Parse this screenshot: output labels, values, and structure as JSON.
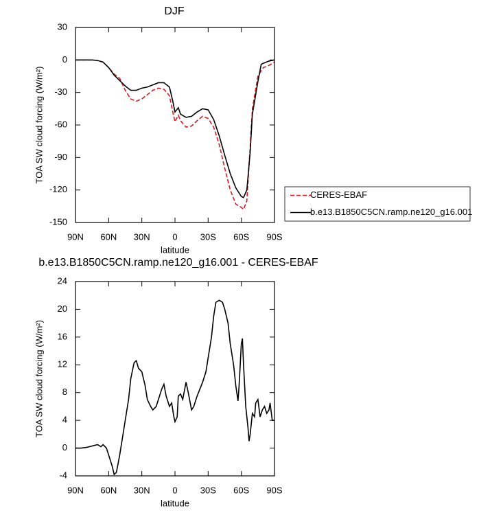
{
  "chart_data": [
    {
      "type": "line",
      "title": "DJF",
      "xlabel": "latitude",
      "ylabel": "TOA SW cloud forcing (W/m²)",
      "x": [
        90,
        85,
        80,
        75,
        70,
        65,
        60,
        55,
        50,
        45,
        40,
        35,
        30,
        25,
        20,
        15,
        10,
        5,
        2,
        0,
        -3,
        -5,
        -10,
        -15,
        -20,
        -25,
        -30,
        -35,
        -40,
        -45,
        -50,
        -55,
        -60,
        -62,
        -65,
        -68,
        -70,
        -75,
        -78,
        -80,
        -85,
        -90
      ],
      "series": [
        {
          "name": "CERES-EBAF",
          "color": "#e8141e",
          "dash": true,
          "values": [
            0,
            0,
            0,
            0,
            -0.5,
            -2,
            -7,
            -13,
            -17,
            -28,
            -36,
            -38,
            -36,
            -32,
            -28,
            -26,
            -27,
            -33,
            -48,
            -57,
            -51,
            -56,
            -62,
            -61,
            -56,
            -52,
            -54,
            -62,
            -78,
            -100,
            -120,
            -133,
            -136,
            -138,
            -130,
            -80,
            -45,
            -15,
            -10,
            -7,
            -5,
            -2
          ]
        },
        {
          "name": "b.e13.B1850C5CN.ramp.ne120_g16.001",
          "color": "#000000",
          "dash": false,
          "values": [
            0,
            0,
            0,
            0,
            -0.5,
            -2,
            -7,
            -14,
            -19,
            -24,
            -28,
            -28,
            -26,
            -25,
            -23,
            -21,
            -21,
            -25,
            -38,
            -48,
            -44,
            -50,
            -53,
            -52,
            -48,
            -45,
            -46,
            -55,
            -70,
            -88,
            -105,
            -118,
            -126,
            -127,
            -120,
            -85,
            -50,
            -20,
            -4,
            -3,
            -1,
            0
          ]
        }
      ],
      "xlim": [
        90,
        -90
      ],
      "ylim": [
        -150,
        30
      ],
      "xticks": [
        {
          "value": 90,
          "label": "90N"
        },
        {
          "value": 60,
          "label": "60N"
        },
        {
          "value": 30,
          "label": "30N"
        },
        0,
        {
          "value": -30,
          "label": "30S"
        },
        {
          "value": -60,
          "label": "60S"
        },
        {
          "value": -90,
          "label": "90S"
        }
      ],
      "yticks": [
        -150,
        -120,
        -90,
        -60,
        -30,
        0,
        30
      ],
      "legend": "outside-right"
    },
    {
      "type": "line",
      "title": "b.e13.B1850C5CN.ramp.ne120_g16.001 - CERES-EBAF",
      "xlabel": "latitude",
      "ylabel": "TOA SW cloud forcing (W/m²)",
      "x": [
        90,
        85,
        80,
        75,
        70,
        67,
        65,
        62,
        60,
        57,
        55,
        53,
        50,
        47,
        45,
        42,
        40,
        37,
        35,
        33,
        30,
        27,
        25,
        22,
        20,
        17,
        15,
        12,
        10,
        8,
        5,
        3,
        1,
        0,
        -2,
        -3,
        -5,
        -7,
        -10,
        -12,
        -15,
        -17,
        -20,
        -25,
        -28,
        -30,
        -33,
        -35,
        -37,
        -40,
        -43,
        -45,
        -48,
        -50,
        -53,
        -55,
        -57,
        -58,
        -60,
        -61,
        -62,
        -64,
        -66,
        -67,
        -68,
        -70,
        -72,
        -73,
        -75,
        -77,
        -79,
        -81,
        -83,
        -85,
        -86,
        -88,
        -90
      ],
      "values": [
        0,
        0,
        0.1,
        0.3,
        0.5,
        0.2,
        0.5,
        0,
        -1,
        -2.5,
        -3.8,
        -3.5,
        -1,
        2,
        4,
        7,
        10,
        12.3,
        12.6,
        11.5,
        11,
        9,
        7,
        6,
        5.5,
        6,
        7,
        8.5,
        9.2,
        7.5,
        6,
        6.5,
        4.5,
        3.8,
        4.5,
        7.5,
        7.8,
        7,
        9.5,
        8,
        5.5,
        6,
        7.5,
        9.5,
        11,
        13,
        16,
        19,
        21,
        21.3,
        21,
        20,
        18,
        15,
        12,
        9,
        6.8,
        9,
        15,
        15.8,
        12,
        6,
        3,
        1,
        2,
        5,
        4.5,
        6.5,
        7,
        4.5,
        5.5,
        6,
        5,
        5.5,
        6.5,
        4,
        4
      ],
      "color": "#000000",
      "xlim": [
        90,
        -90
      ],
      "ylim": [
        -4,
        24
      ],
      "xticks": [
        {
          "value": 90,
          "label": "90N"
        },
        {
          "value": 60,
          "label": "60N"
        },
        {
          "value": 30,
          "label": "30N"
        },
        0,
        {
          "value": -30,
          "label": "30S"
        },
        {
          "value": -60,
          "label": "60S"
        },
        {
          "value": -90,
          "label": "90S"
        }
      ],
      "yticks": [
        -4,
        0,
        4,
        8,
        12,
        16,
        20,
        24
      ]
    }
  ]
}
